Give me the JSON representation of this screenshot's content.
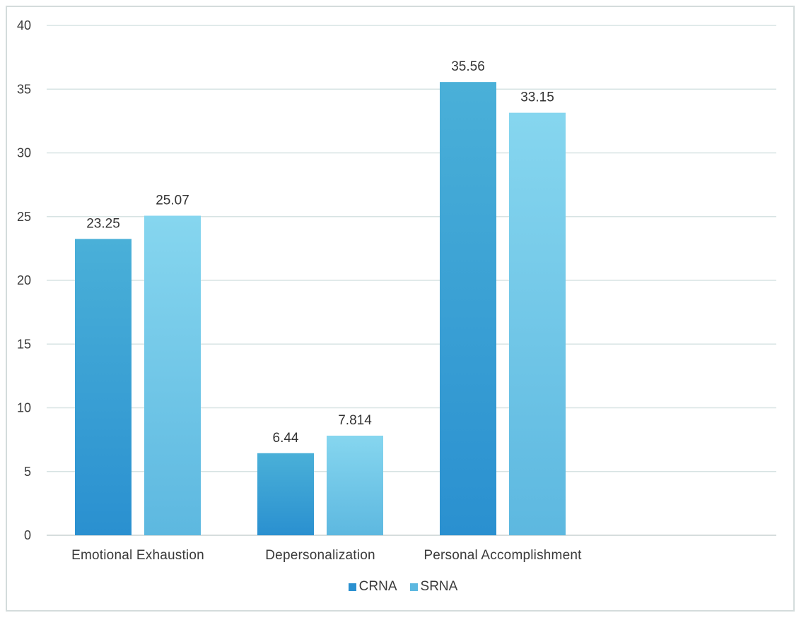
{
  "chart_data": {
    "type": "bar",
    "title": "",
    "xlabel": "",
    "ylabel": "",
    "categories": [
      "Emotional Exhaustion",
      "Depersonalization",
      "Personal Accomplishment"
    ],
    "series": [
      {
        "name": "CRNA",
        "values": [
          23.25,
          6.44,
          35.56
        ],
        "labels": [
          "23.25",
          "6.44",
          "35.56"
        ],
        "color_top": "#4ab0d8",
        "color_bottom": "#2a90d0"
      },
      {
        "name": "SRNA",
        "values": [
          25.07,
          7.814,
          33.15
        ],
        "labels": [
          "25.07",
          "7.814",
          "33.15"
        ],
        "color_top": "#86d6ef",
        "color_bottom": "#5db8e0"
      }
    ],
    "ylim": [
      0,
      40
    ],
    "yticks": [
      0,
      5,
      10,
      15,
      20,
      25,
      30,
      35,
      40
    ],
    "grid": true,
    "legend_position": "bottom"
  }
}
